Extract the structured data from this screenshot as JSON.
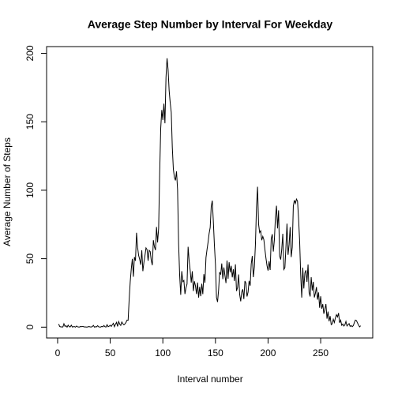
{
  "chart_data": {
    "type": "line",
    "title": "Average Step Number by Interval For Weekday",
    "x_label": "Interval number",
    "y_label": "Average Number of Steps",
    "color": "#000000",
    "x": [
      1,
      2,
      3,
      4,
      5,
      6,
      7,
      8,
      9,
      10,
      11,
      12,
      13,
      14,
      15,
      16,
      17,
      18,
      19,
      20,
      21,
      22,
      23,
      24,
      25,
      26,
      27,
      28,
      29,
      30,
      31,
      32,
      33,
      34,
      35,
      36,
      37,
      38,
      39,
      40,
      41,
      42,
      43,
      44,
      45,
      46,
      47,
      48,
      49,
      50,
      51,
      52,
      53,
      54,
      55,
      56,
      57,
      58,
      59,
      60,
      61,
      62,
      63,
      64,
      65,
      66,
      67,
      68,
      69,
      70,
      71,
      72,
      73,
      74,
      75,
      76,
      77,
      78,
      79,
      80,
      81,
      82,
      83,
      84,
      85,
      86,
      87,
      88,
      89,
      90,
      91,
      92,
      93,
      94,
      95,
      96,
      97,
      98,
      99,
      100,
      101,
      102,
      103,
      104,
      105,
      106,
      107,
      108,
      109,
      110,
      111,
      112,
      113,
      114,
      115,
      116,
      117,
      118,
      119,
      120,
      121,
      122,
      123,
      124,
      125,
      126,
      127,
      128,
      129,
      130,
      131,
      132,
      133,
      134,
      135,
      136,
      137,
      138,
      139,
      140,
      141,
      142,
      143,
      144,
      145,
      146,
      147,
      148,
      149,
      150,
      151,
      152,
      153,
      154,
      155,
      156,
      157,
      158,
      159,
      160,
      161,
      162,
      163,
      164,
      165,
      166,
      167,
      168,
      169,
      170,
      171,
      172,
      173,
      174,
      175,
      176,
      177,
      178,
      179,
      180,
      181,
      182,
      183,
      184,
      185,
      186,
      187,
      188,
      189,
      190,
      191,
      192,
      193,
      194,
      195,
      196,
      197,
      198,
      199,
      200,
      201,
      202,
      203,
      204,
      205,
      206,
      207,
      208,
      209,
      210,
      211,
      212,
      213,
      214,
      215,
      216,
      217,
      218,
      219,
      220,
      221,
      222,
      223,
      224,
      225,
      226,
      227,
      228,
      229,
      230,
      231,
      232,
      233,
      234,
      235,
      236,
      237,
      238,
      239,
      240,
      241,
      242,
      243,
      244,
      245,
      246,
      247,
      248,
      249,
      250,
      251,
      252,
      253,
      254,
      255,
      256,
      257,
      258,
      259,
      260,
      261,
      262,
      263,
      264,
      265,
      266,
      267,
      268,
      269,
      270,
      271,
      272,
      273,
      274,
      275,
      276,
      277,
      278,
      279,
      280,
      281,
      282,
      283,
      284,
      285,
      286,
      287,
      288
    ],
    "values": [
      2.3,
      0.5,
      0.2,
      0.2,
      0.1,
      2.5,
      0.6,
      1.0,
      0,
      1.5,
      0.3,
      0.2,
      1.5,
      0.1,
      0.3,
      0.4,
      0,
      0.8,
      0.2,
      0.1,
      0.1,
      0.5,
      0.3,
      0.6,
      0.2,
      0.2,
      0.1,
      0,
      0.3,
      0.4,
      0.2,
      0.1,
      0.4,
      1.3,
      0,
      0.3,
      0.2,
      1.1,
      0.2,
      0.1,
      0.1,
      0.5,
      0.2,
      1.2,
      0.3,
      0.1,
      1.8,
      0.3,
      0.7,
      1.4,
      0.5,
      1.9,
      2.8,
      0.3,
      2.2,
      3.5,
      0.5,
      4.1,
      2.2,
      1.3,
      3.8,
      2.5,
      1.8,
      2.4,
      3.5,
      5.2,
      5.0,
      20.3,
      33.1,
      42.5,
      49.9,
      36.8,
      51.2,
      48.5,
      68.9,
      58.3,
      52.4,
      49.5,
      45.6,
      56.2,
      40.9,
      47.2,
      52.3,
      57.9,
      56.7,
      48.5,
      56.1,
      55.2,
      48.7,
      45.3,
      63.5,
      58.7,
      56.3,
      73.2,
      61.9,
      72.2,
      112.5,
      145.4,
      158.6,
      151.3,
      163.2,
      148.9,
      182.3,
      196.4,
      188.1,
      172.7,
      163.9,
      156.9,
      131.2,
      115.3,
      109.4,
      107.2,
      113.8,
      100.4,
      60.7,
      37.8,
      23.6,
      40.9,
      33.2,
      34.1,
      24.2,
      28.7,
      31.5,
      58.7,
      48.4,
      41.4,
      32.6,
      40.8,
      26.4,
      33.5,
      30.2,
      24.2,
      32.6,
      21.6,
      29.4,
      22.6,
      31.7,
      24.1,
      38.7,
      32.5,
      50.8,
      56.7,
      62.1,
      68.5,
      72.8,
      88.2,
      92.4,
      77.3,
      60.1,
      45.8,
      21.6,
      18.4,
      27.2,
      40.2,
      38.4,
      46.5,
      35.1,
      43.6,
      37.8,
      32.2,
      48.7,
      35.4,
      47.4,
      40.1,
      44.8,
      36.4,
      42.3,
      33.7,
      45.9,
      26.4,
      28.9,
      38.5,
      24.1,
      18.9,
      25.6,
      27.7,
      20.5,
      33.7,
      32.1,
      22.4,
      25.6,
      33.8,
      30.3,
      46.1,
      52.0,
      36.5,
      44.0,
      60.5,
      87.6,
      102.5,
      75.2,
      69.1,
      70.4,
      63.5,
      66.3,
      63.9,
      56.8,
      50.4,
      44.9,
      41.3,
      48.2,
      41.7,
      64.5,
      67.9,
      55.2,
      63.6,
      80.1,
      88.7,
      72.1,
      85.3,
      51.9,
      49.4,
      56.7,
      68.2,
      42.1,
      43.5,
      58.7,
      75.6,
      52.8,
      60.4,
      73.1,
      51.2,
      58.4,
      88.3,
      92.7,
      90.4,
      93.5,
      92.1,
      79.4,
      63.2,
      38.6,
      21.6,
      43.5,
      28.2,
      39.7,
      41.5,
      33.1,
      45.8,
      25.3,
      22.4,
      36.5,
      26.8,
      33.1,
      21.7,
      24.8,
      29.3,
      20.1,
      25.4,
      14.2,
      22.6,
      13.5,
      16.8,
      9.8,
      13.1,
      16.9,
      6.2,
      11.4,
      4.3,
      8.1,
      1.9,
      2.5,
      5.8,
      3.4,
      6.7,
      9.1,
      7.5,
      10.3,
      3.2,
      5.1,
      1.4,
      2.3,
      0.8,
      1.7,
      4.2,
      0.9,
      1.8,
      2.6,
      0.5,
      1.2,
      0.3,
      1.1,
      3.3,
      5.2,
      4.8,
      3.1,
      1.5,
      0.2,
      1.0
    ],
    "xlim": [
      -10.48,
      299.48
    ],
    "ylim": [
      -7.9,
      204.9
    ],
    "xticks": [
      0,
      50,
      100,
      150,
      200,
      250
    ],
    "yticks": [
      0,
      50,
      100,
      150,
      200
    ]
  }
}
